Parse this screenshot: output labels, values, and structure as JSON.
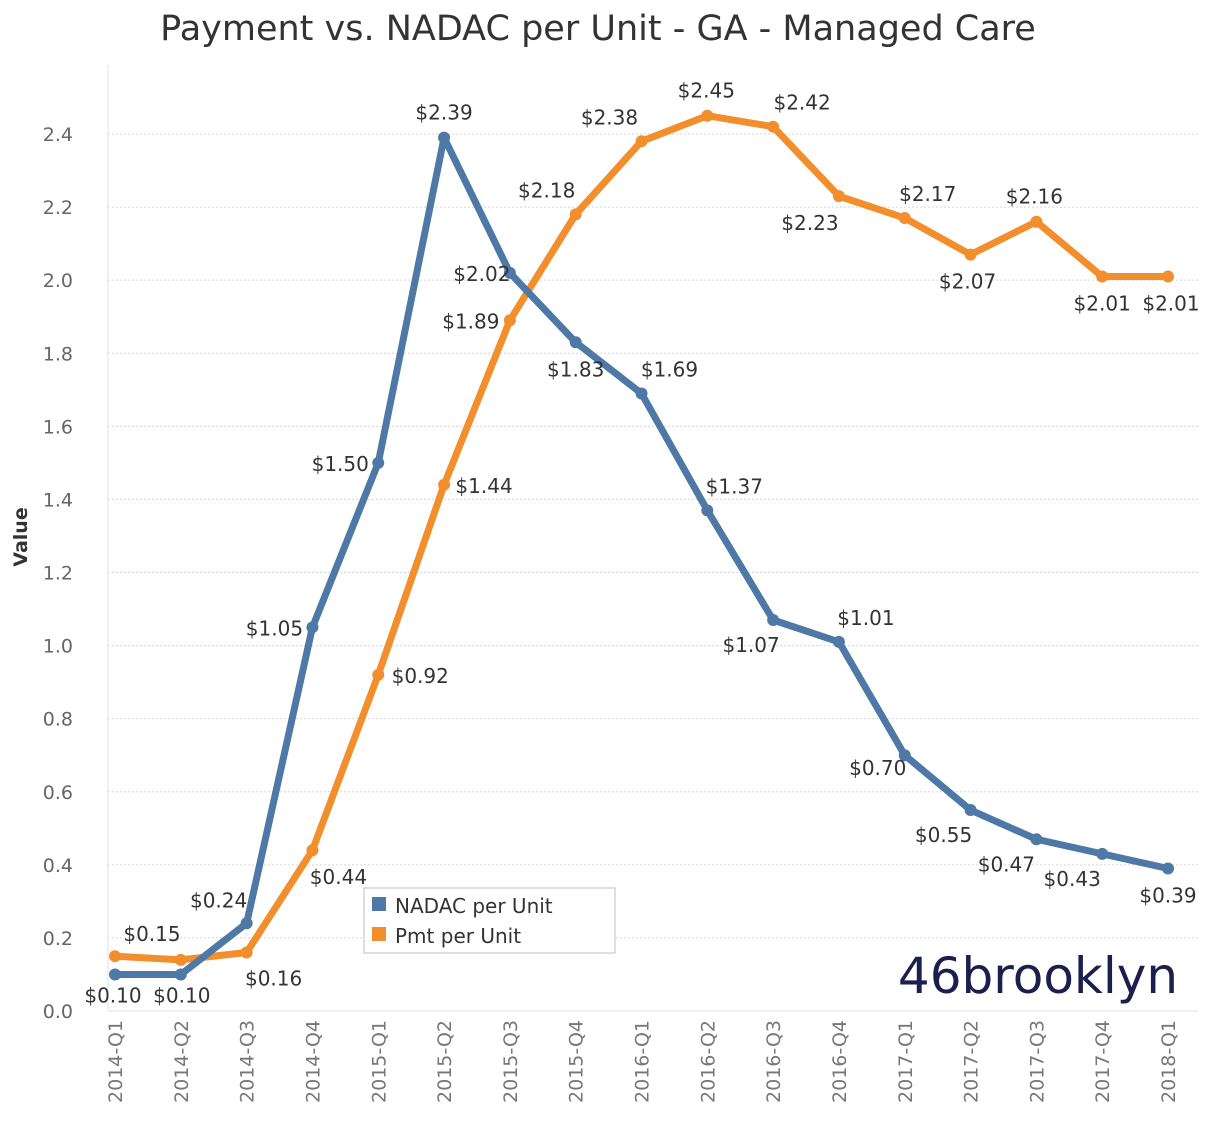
{
  "chart_data": {
    "type": "line",
    "title": "Payment vs. NADAC per Unit - GA - Managed Care",
    "ylabel": "Value",
    "xlabel": "",
    "ylim": [
      0.0,
      2.55
    ],
    "yticks": [
      "0.0",
      "0.2",
      "0.4",
      "0.6",
      "0.8",
      "1.0",
      "1.2",
      "1.4",
      "1.6",
      "1.8",
      "2.0",
      "2.2",
      "2.4"
    ],
    "grid": true,
    "legend_position": "bottom-left",
    "categories": [
      "2014-Q1",
      "2014-Q2",
      "2014-Q3",
      "2014-Q4",
      "2015-Q1",
      "2015-Q2",
      "2015-Q3",
      "2015-Q4",
      "2016-Q1",
      "2016-Q2",
      "2016-Q3",
      "2016-Q4",
      "2017-Q1",
      "2017-Q2",
      "2017-Q3",
      "2017-Q4",
      "2018-Q1"
    ],
    "series": [
      {
        "name": "NADAC per Unit",
        "color": "#4e79a7",
        "values": [
          0.1,
          0.1,
          0.24,
          1.05,
          1.5,
          2.39,
          2.02,
          1.83,
          1.69,
          1.37,
          1.07,
          1.01,
          0.7,
          0.55,
          0.47,
          0.43,
          0.39
        ],
        "labels": [
          "$0.10",
          "$0.10",
          "$0.24",
          "$1.05",
          "$1.50",
          "$2.39",
          "$2.02",
          "$1.83",
          "$1.69",
          "$1.37",
          "$1.07",
          "$1.01",
          "$0.70",
          "$0.55",
          "$0.47",
          "$0.43",
          "$0.39"
        ]
      },
      {
        "name": "Pmt per Unit",
        "color": "#f28e2b",
        "values": [
          0.15,
          0.14,
          0.16,
          0.44,
          0.92,
          1.44,
          1.89,
          2.18,
          2.38,
          2.45,
          2.42,
          2.23,
          2.17,
          2.07,
          2.16,
          2.01,
          2.01
        ],
        "labels": [
          "$0.15",
          "",
          "$0.16",
          "$0.44",
          "$0.92",
          "$1.44",
          "$1.89",
          "$2.18",
          "$2.38",
          "$2.45",
          "$2.42",
          "$2.23",
          "$2.17",
          "$2.07",
          "$2.16",
          "$2.01",
          "$2.01"
        ]
      }
    ]
  },
  "logo": {
    "text": "46brooklyn"
  }
}
